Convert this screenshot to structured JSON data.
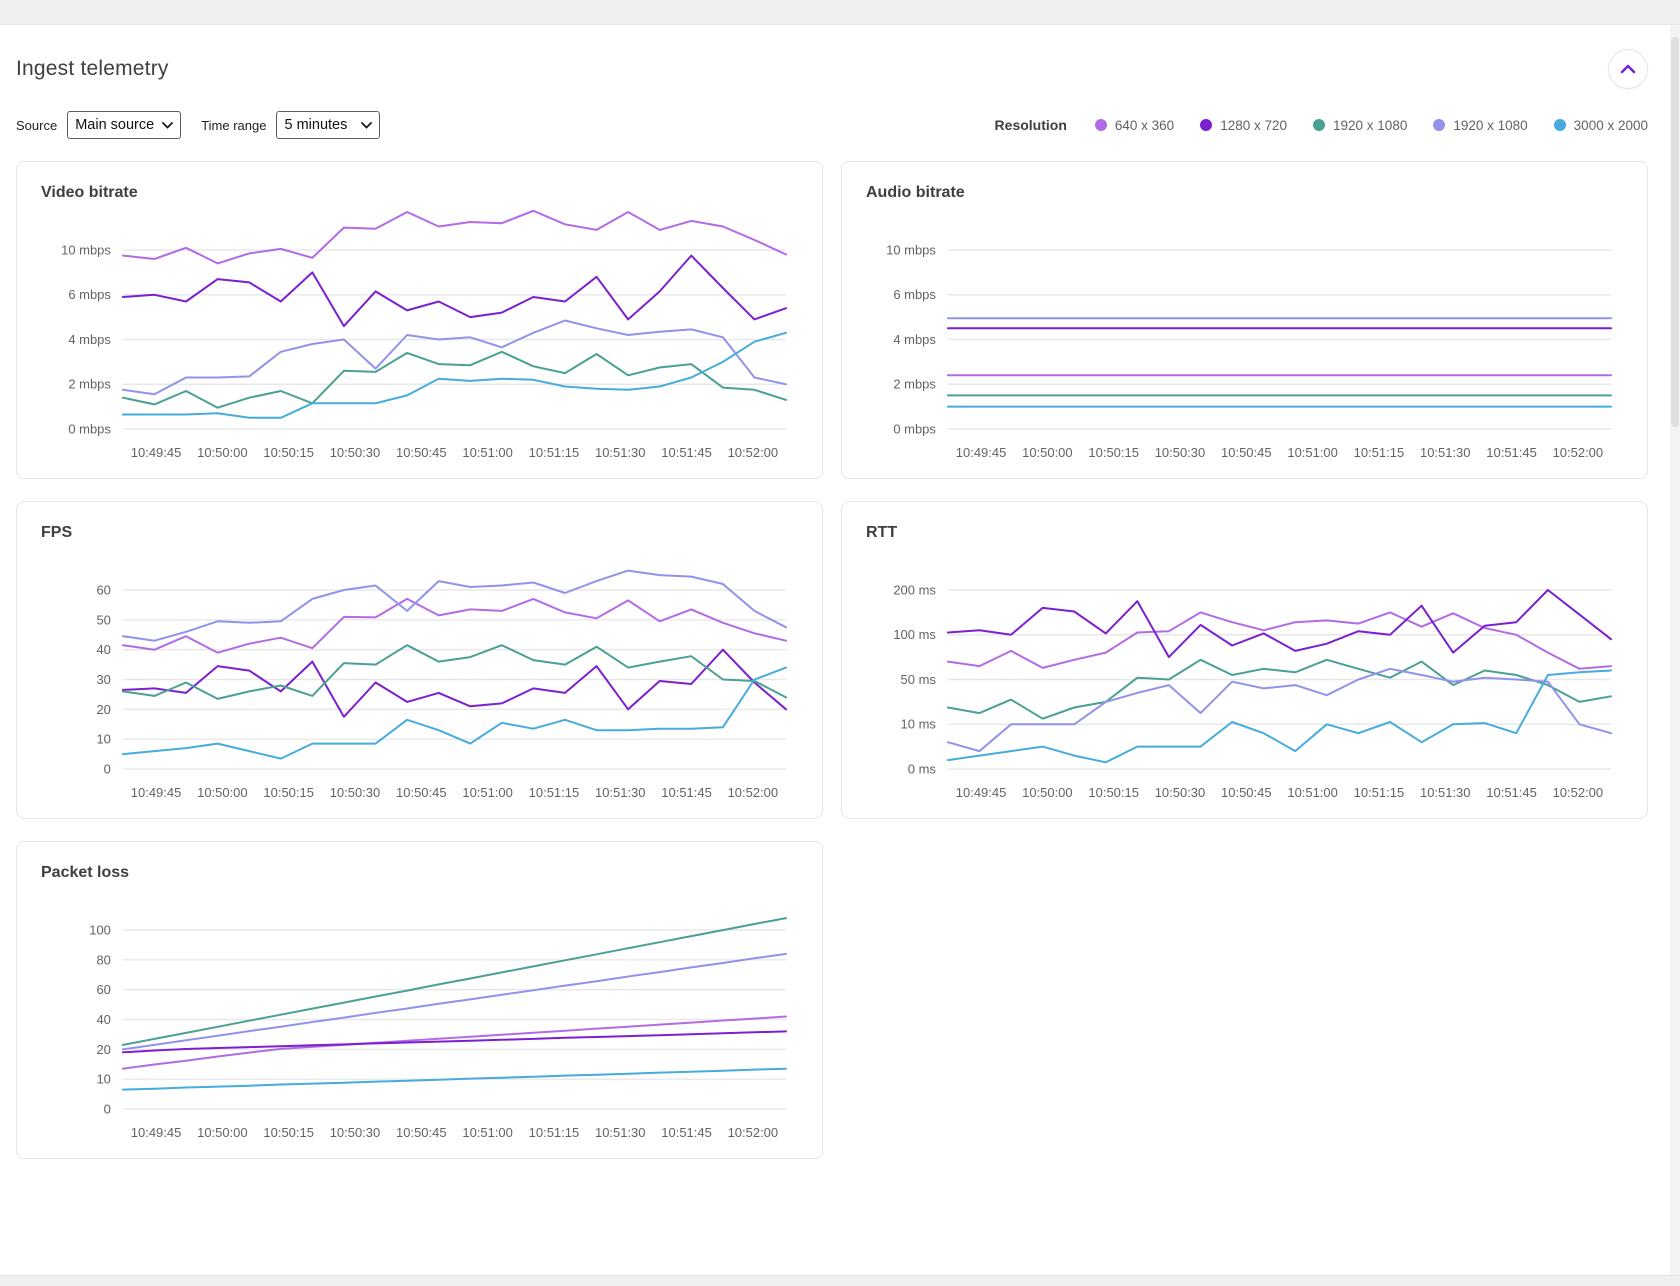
{
  "header": {
    "title": "Ingest telemetry",
    "collapse_icon": "chevron-up-icon",
    "accent_color": "#7c1fd6"
  },
  "controls": {
    "source_label": "Source",
    "source_value": "Main source",
    "time_range_label": "Time range",
    "time_range_value": "5 minutes"
  },
  "legend": {
    "label": "Resolution",
    "items": [
      {
        "label": "640 x 360",
        "color": "#b36ae6"
      },
      {
        "label": "1280 x 720",
        "color": "#7b1fd0"
      },
      {
        "label": "1920 x 1080",
        "color": "#4aa091"
      },
      {
        "label": "1920 x 1080",
        "color": "#9292ec"
      },
      {
        "label": "3000 x 2000",
        "color": "#46abdd"
      }
    ]
  },
  "chart_data": [
    {
      "type": "line",
      "title": "Video bitrate",
      "ylabel": "mbps",
      "y_ticks": {
        "values": [
          0,
          2,
          4,
          6,
          10
        ],
        "labels": [
          "0 mbps",
          "2 mbps",
          "4 mbps",
          "6 mbps",
          "10 mbps"
        ]
      },
      "x_labels": [
        "10:49:45",
        "10:50:00",
        "10:50:15",
        "10:50:30",
        "10:50:45",
        "10:51:00",
        "10:51:15",
        "10:51:30",
        "10:51:45",
        "10:52:00"
      ],
      "series": [
        {
          "name": "640 x 360",
          "color": "#b36ae6",
          "values": [
            9.5,
            9.2,
            10.2,
            8.8,
            9.7,
            10.1,
            9.3,
            12.0,
            11.9,
            13.4,
            12.1,
            12.5,
            12.4,
            13.5,
            12.3,
            11.8,
            13.4,
            11.8,
            12.6,
            12.1,
            10.9,
            9.6
          ]
        },
        {
          "name": "1280 x 720",
          "color": "#7b1fd0",
          "values": [
            5.9,
            6.0,
            5.7,
            7.4,
            7.1,
            5.7,
            8.0,
            4.6,
            6.3,
            5.3,
            5.7,
            5.0,
            5.2,
            5.9,
            5.7,
            7.6,
            4.9,
            6.3,
            9.5,
            6.6,
            4.9,
            5.4
          ]
        },
        {
          "name": "1920 x 1080 (teal)",
          "color": "#4aa091",
          "values": [
            1.4,
            1.1,
            1.7,
            0.95,
            1.4,
            1.7,
            1.15,
            2.6,
            2.55,
            3.4,
            2.9,
            2.85,
            3.45,
            2.8,
            2.5,
            3.35,
            2.4,
            2.75,
            2.9,
            1.85,
            1.75,
            1.3
          ]
        },
        {
          "name": "1920 x 1080 (periwinkle)",
          "color": "#9292ec",
          "values": [
            1.75,
            1.55,
            2.3,
            2.3,
            2.35,
            3.45,
            3.8,
            4.0,
            2.7,
            4.2,
            4.0,
            4.1,
            3.65,
            4.3,
            4.85,
            4.5,
            4.2,
            4.35,
            4.45,
            4.1,
            2.3,
            2.0
          ]
        },
        {
          "name": "3000 x 2000",
          "color": "#46abdd",
          "values": [
            0.65,
            0.65,
            0.65,
            0.7,
            0.5,
            0.5,
            1.15,
            1.15,
            1.15,
            1.5,
            2.25,
            2.15,
            2.25,
            2.2,
            1.9,
            1.8,
            1.75,
            1.9,
            2.3,
            3.0,
            3.9,
            4.3
          ]
        }
      ]
    },
    {
      "type": "line",
      "title": "Audio bitrate",
      "ylabel": "mbps",
      "y_ticks": {
        "values": [
          0,
          2,
          4,
          6,
          10
        ],
        "labels": [
          "0 mbps",
          "2 mbps",
          "4 mbps",
          "6 mbps",
          "10 mbps"
        ]
      },
      "x_labels": [
        "10:49:45",
        "10:50:00",
        "10:50:15",
        "10:50:30",
        "10:50:45",
        "10:51:00",
        "10:51:15",
        "10:51:30",
        "10:51:45",
        "10:52:00"
      ],
      "series": [
        {
          "name": "640 x 360",
          "color": "#b36ae6",
          "values": [
            2.4,
            2.4
          ]
        },
        {
          "name": "1280 x 720",
          "color": "#7b1fd0",
          "values": [
            4.5,
            4.5
          ]
        },
        {
          "name": "1920 x 1080 (teal)",
          "color": "#4aa091",
          "values": [
            1.5,
            1.5
          ]
        },
        {
          "name": "1920 x 1080 (periwinkle)",
          "color": "#9292ec",
          "values": [
            4.95,
            4.95
          ]
        },
        {
          "name": "3000 x 2000",
          "color": "#46abdd",
          "values": [
            1.0,
            1.0
          ]
        }
      ]
    },
    {
      "type": "line",
      "title": "FPS",
      "ylabel": "",
      "y_ticks": {
        "values": [
          0,
          10,
          20,
          30,
          40,
          50,
          60
        ],
        "labels": [
          "0",
          "10",
          "20",
          "30",
          "40",
          "50",
          "60"
        ]
      },
      "x_labels": [
        "10:49:45",
        "10:50:00",
        "10:50:15",
        "10:50:30",
        "10:50:45",
        "10:51:00",
        "10:51:15",
        "10:51:30",
        "10:51:45",
        "10:52:00"
      ],
      "series": [
        {
          "name": "640 x 360",
          "color": "#b36ae6",
          "values": [
            41.5,
            40,
            44.5,
            39,
            42,
            44,
            40.5,
            51,
            50.8,
            57,
            51.5,
            53.5,
            53,
            57,
            52.5,
            50.5,
            56.5,
            49.5,
            53.5,
            49,
            45.5,
            43
          ]
        },
        {
          "name": "1280 x 720",
          "color": "#7b1fd0",
          "values": [
            26.5,
            27,
            25.5,
            34.5,
            33,
            26,
            36,
            17.5,
            29,
            22.5,
            25.5,
            21,
            22,
            27,
            25.5,
            34.5,
            20,
            29.5,
            28.5,
            40,
            29,
            20
          ]
        },
        {
          "name": "1920 x 1080 (teal)",
          "color": "#4aa091",
          "values": [
            26,
            24.5,
            29,
            23.5,
            26,
            28,
            24.5,
            35.5,
            35,
            41.5,
            36,
            37.5,
            41.5,
            36.5,
            35,
            41,
            34,
            36,
            37.8,
            30,
            29.5,
            24
          ]
        },
        {
          "name": "1920 x 1080 (periwinkle)",
          "color": "#9292ec",
          "values": [
            44.5,
            43,
            46,
            49.5,
            49,
            49.5,
            57,
            60,
            61.5,
            53,
            63,
            61,
            61.5,
            62.5,
            59,
            63,
            66.5,
            65,
            64.5,
            62,
            53,
            47.5
          ]
        },
        {
          "name": "3000 x 2000",
          "color": "#46abdd",
          "values": [
            5,
            6,
            7,
            8.5,
            6,
            3.5,
            8.5,
            8.5,
            8.5,
            16.5,
            13,
            8.5,
            15.5,
            13.5,
            16.5,
            13,
            13,
            13.5,
            13.5,
            14,
            30,
            34
          ]
        }
      ]
    },
    {
      "type": "line",
      "title": "RTT",
      "ylabel": "ms",
      "y_ticks": {
        "values": [
          0,
          10,
          50,
          100,
          200
        ],
        "labels": [
          "0 ms",
          "10 ms",
          "50 ms",
          "100 ms",
          "200 ms"
        ]
      },
      "x_labels": [
        "10:49:45",
        "10:50:00",
        "10:50:15",
        "10:50:30",
        "10:50:45",
        "10:51:00",
        "10:51:15",
        "10:51:30",
        "10:51:45",
        "10:52:00"
      ],
      "series": [
        {
          "name": "640 x 360",
          "color": "#b36ae6",
          "values": [
            70,
            65,
            82,
            63,
            72,
            80,
            105,
            108,
            150,
            128,
            110,
            128,
            132,
            125,
            150,
            118,
            148,
            115,
            100,
            80,
            62,
            65
          ]
        },
        {
          "name": "1280 x 720",
          "color": "#7b1fd0",
          "values": [
            105,
            110,
            100,
            160,
            152,
            103,
            175,
            75,
            122,
            88,
            103,
            82,
            90,
            108,
            100,
            165,
            80,
            120,
            128,
            200,
            145,
            95
          ]
        },
        {
          "name": "1920 x 1080 (teal)",
          "color": "#4aa091",
          "values": [
            25,
            20,
            32,
            15,
            25,
            30,
            52,
            50,
            72,
            55,
            62,
            58,
            72,
            62,
            52,
            70,
            45,
            60,
            55,
            45,
            30,
            35
          ]
        },
        {
          "name": "1920 x 1080 (periwinkle)",
          "color": "#9292ec",
          "values": [
            6,
            4,
            10,
            10,
            10,
            30,
            38,
            45,
            20,
            48,
            42,
            45,
            36,
            50,
            62,
            55,
            48,
            52,
            50,
            48,
            10,
            8
          ]
        },
        {
          "name": "3000 x 2000",
          "color": "#46abdd",
          "values": [
            2,
            3,
            4,
            5,
            3,
            1.5,
            5,
            5,
            5,
            12,
            8,
            4,
            10,
            8,
            12,
            6,
            10,
            11,
            8,
            55,
            58,
            60
          ]
        }
      ]
    },
    {
      "type": "line",
      "title": "Packet loss",
      "ylabel": "",
      "y_ticks": {
        "values": [
          0,
          10,
          20,
          40,
          60,
          80,
          100
        ],
        "labels": [
          "0",
          "10",
          "20",
          "40",
          "60",
          "80",
          "100"
        ]
      },
      "x_labels": [
        "10:49:45",
        "10:50:00",
        "10:50:15",
        "10:50:30",
        "10:50:45",
        "10:51:00",
        "10:51:15",
        "10:51:30",
        "10:51:45",
        "10:52:00"
      ],
      "series": [
        {
          "name": "640 x 360",
          "color": "#b36ae6",
          "values": [
            13.5,
            14.9,
            16.2,
            17.6,
            18.9,
            20.3,
            21.6,
            23,
            24.4,
            25.7,
            27.1,
            28.4,
            29.8,
            31.1,
            32.5,
            33.9,
            35.2,
            36.6,
            37.9,
            39.3,
            40.6,
            42
          ]
        },
        {
          "name": "1280 x 720",
          "color": "#7b1fd0",
          "values": [
            19,
            19.6,
            20.2,
            20.9,
            21.5,
            22.1,
            22.7,
            23.3,
            24,
            24.6,
            25.2,
            25.8,
            26.4,
            27,
            27.7,
            28.3,
            28.9,
            29.5,
            30.1,
            30.8,
            31.4,
            32
          ]
        },
        {
          "name": "1920 x 1080 (teal)",
          "color": "#4aa091",
          "values": [
            23,
            27,
            31,
            35.1,
            39.2,
            43.2,
            47.3,
            51.3,
            55.4,
            59.4,
            63.5,
            67.5,
            71.6,
            75.6,
            79.7,
            83.7,
            87.8,
            91.8,
            95.9,
            99.9,
            104,
            108
          ]
        },
        {
          "name": "1920 x 1080 (periwinkle)",
          "color": "#9292ec",
          "values": [
            20,
            23,
            26.1,
            29.1,
            32.2,
            35.2,
            38.3,
            41.3,
            44.4,
            47.4,
            50.5,
            53.5,
            56.6,
            59.6,
            62.7,
            65.7,
            68.8,
            71.8,
            74.9,
            77.9,
            81,
            84
          ]
        },
        {
          "name": "3000 x 2000",
          "color": "#46abdd",
          "values": [
            6.5,
            6.8,
            7.2,
            7.5,
            7.8,
            8.2,
            8.5,
            8.8,
            9.2,
            9.5,
            9.8,
            10.2,
            10.5,
            10.8,
            11.2,
            11.5,
            11.8,
            12.2,
            12.5,
            12.8,
            13.2,
            13.5
          ]
        }
      ]
    }
  ]
}
